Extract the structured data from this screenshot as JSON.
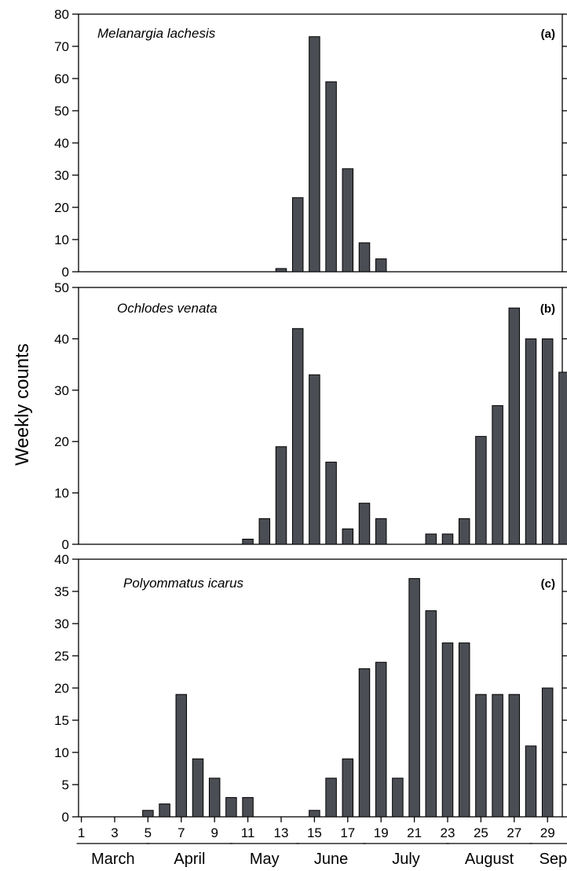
{
  "chart_data": {
    "type": "bar",
    "ylabel": "Weekly counts",
    "grid": false,
    "x_ticks": [
      "1",
      "3",
      "5",
      "7",
      "9",
      "11",
      "13",
      "15",
      "17",
      "19",
      "21",
      "23",
      "25",
      "27",
      "29"
    ],
    "months": [
      {
        "label": "March",
        "weeks": [
          1,
          4.8
        ]
      },
      {
        "label": "April",
        "weeks": [
          5.2,
          9.8
        ]
      },
      {
        "label": "May",
        "weeks": [
          10.2,
          13.8
        ]
      },
      {
        "label": "June",
        "weeks": [
          14.2,
          17.8
        ]
      },
      {
        "label": "July",
        "weeks": [
          18.2,
          22.8
        ]
      },
      {
        "label": "August",
        "weeks": [
          23.2,
          27.8
        ]
      },
      {
        "label": "Sept.",
        "weeks": [
          28.2,
          31
        ]
      }
    ],
    "panels": [
      {
        "tag": "(a)",
        "species": "Melanargia lachesis",
        "ylim": [
          0,
          80
        ],
        "yticks": [
          "0",
          "10",
          "20",
          "30",
          "40",
          "50",
          "60",
          "70",
          "80"
        ],
        "weeks": [
          1,
          2,
          3,
          4,
          5,
          6,
          7,
          8,
          9,
          10,
          11,
          12,
          13,
          14,
          15,
          16,
          17,
          18,
          19,
          20,
          21,
          22,
          23,
          24,
          25,
          26,
          27,
          28,
          29,
          30,
          31
        ],
        "values": [
          0,
          0,
          0,
          0,
          0,
          0,
          0,
          0,
          0,
          0,
          0,
          0,
          1,
          23,
          73,
          59,
          32,
          9,
          4,
          0,
          0,
          0,
          0,
          0,
          0,
          0,
          0,
          0,
          0,
          0,
          0
        ]
      },
      {
        "tag": "(b)",
        "species": "Ochlodes venata",
        "ylim": [
          0,
          50
        ],
        "yticks": [
          "0",
          "10",
          "20",
          "30",
          "40",
          "50"
        ],
        "weeks": [
          1,
          2,
          3,
          4,
          5,
          6,
          7,
          8,
          9,
          10,
          11,
          12,
          13,
          14,
          15,
          16,
          17,
          18,
          19,
          20,
          21,
          22,
          23,
          24,
          25,
          26,
          27,
          28,
          29,
          30,
          31
        ],
        "values": [
          0,
          0,
          0,
          0,
          0,
          0,
          0,
          0,
          0,
          0,
          1,
          5,
          19,
          42,
          33,
          16,
          3,
          8,
          5,
          0,
          0,
          2,
          2,
          5,
          21,
          27,
          46,
          40,
          40,
          33.5,
          0
        ]
      },
      {
        "tag": "(c)",
        "species": "Polyommatus icarus",
        "ylim": [
          0,
          40
        ],
        "yticks": [
          "0",
          "5",
          "10",
          "15",
          "20",
          "25",
          "30",
          "35",
          "40"
        ],
        "weeks": [
          1,
          2,
          3,
          4,
          5,
          6,
          7,
          8,
          9,
          10,
          11,
          12,
          13,
          14,
          15,
          16,
          17,
          18,
          19,
          20,
          21,
          22,
          23,
          24,
          25,
          26,
          27,
          28,
          29,
          30,
          31
        ],
        "values": [
          0,
          0,
          0,
          0,
          1,
          2,
          19,
          9,
          6,
          3,
          3,
          0,
          0,
          0,
          1,
          6,
          9,
          23,
          24,
          6,
          37,
          32,
          27,
          27,
          19,
          19,
          19,
          11,
          20,
          0,
          0
        ]
      }
    ]
  },
  "colors": {
    "bar_fill": "#4a4d53",
    "bar_stroke": "#000000",
    "axis": "#000000",
    "background": "#ffffff"
  }
}
